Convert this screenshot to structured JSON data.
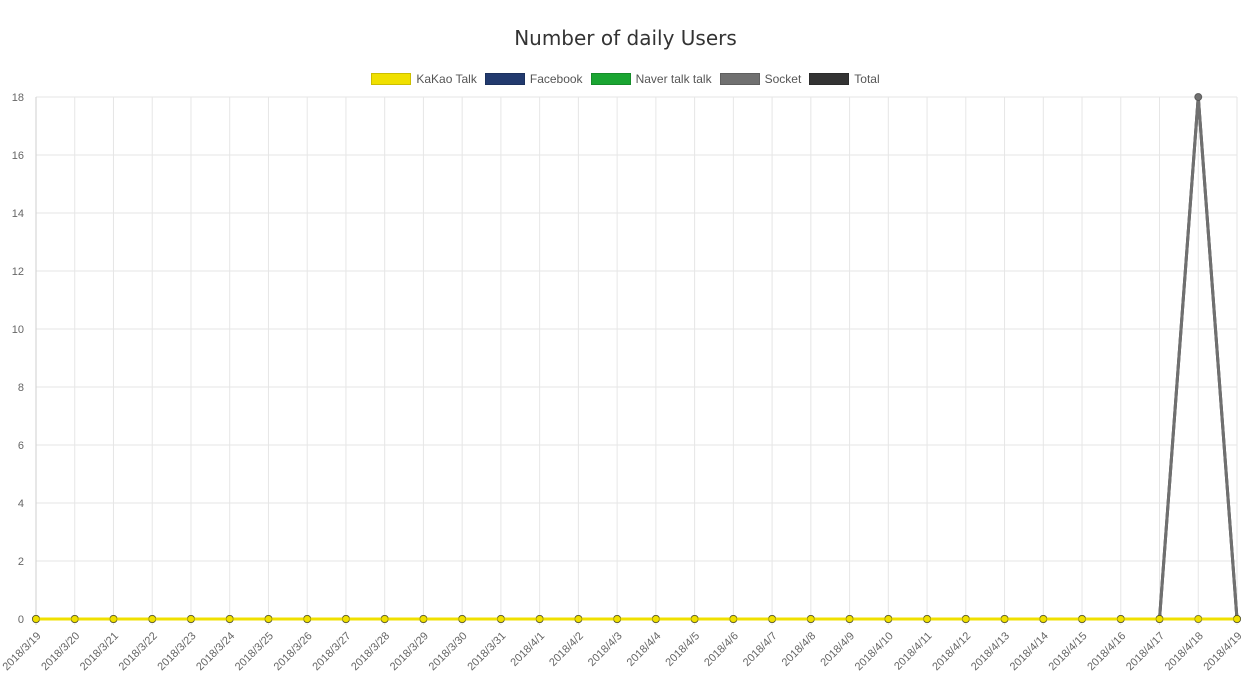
{
  "chart_data": {
    "type": "line",
    "title": "Number of daily Users",
    "xlabel": "",
    "ylabel": "",
    "ylim": [
      0,
      18
    ],
    "y_ticks": [
      0,
      2,
      4,
      6,
      8,
      10,
      12,
      14,
      16,
      18
    ],
    "grid": true,
    "legend_position": "top",
    "categories": [
      "2018/3/19",
      "2018/3/20",
      "2018/3/21",
      "2018/3/22",
      "2018/3/23",
      "2018/3/24",
      "2018/3/25",
      "2018/3/26",
      "2018/3/27",
      "2018/3/28",
      "2018/3/29",
      "2018/3/30",
      "2018/3/31",
      "2018/4/1",
      "2018/4/2",
      "2018/4/3",
      "2018/4/4",
      "2018/4/5",
      "2018/4/6",
      "2018/4/7",
      "2018/4/8",
      "2018/4/9",
      "2018/4/10",
      "2018/4/11",
      "2018/4/12",
      "2018/4/13",
      "2018/4/14",
      "2018/4/15",
      "2018/4/16",
      "2018/4/17",
      "2018/4/18",
      "2018/4/19"
    ],
    "series": [
      {
        "name": "KaKao Talk",
        "color": "#f0e000",
        "values": [
          0,
          0,
          0,
          0,
          0,
          0,
          0,
          0,
          0,
          0,
          0,
          0,
          0,
          0,
          0,
          0,
          0,
          0,
          0,
          0,
          0,
          0,
          0,
          0,
          0,
          0,
          0,
          0,
          0,
          0,
          0,
          0
        ]
      },
      {
        "name": "Facebook",
        "color": "#223a6e",
        "values": [
          0,
          0,
          0,
          0,
          0,
          0,
          0,
          0,
          0,
          0,
          0,
          0,
          0,
          0,
          0,
          0,
          0,
          0,
          0,
          0,
          0,
          0,
          0,
          0,
          0,
          0,
          0,
          0,
          0,
          0,
          0,
          0
        ]
      },
      {
        "name": "Naver talk talk",
        "color": "#1aa532",
        "values": [
          0,
          0,
          0,
          0,
          0,
          0,
          0,
          0,
          0,
          0,
          0,
          0,
          0,
          0,
          0,
          0,
          0,
          0,
          0,
          0,
          0,
          0,
          0,
          0,
          0,
          0,
          0,
          0,
          0,
          0,
          0,
          0
        ]
      },
      {
        "name": "Socket",
        "color": "#707070",
        "values": [
          0,
          0,
          0,
          0,
          0,
          0,
          0,
          0,
          0,
          0,
          0,
          0,
          0,
          0,
          0,
          0,
          0,
          0,
          0,
          0,
          0,
          0,
          0,
          0,
          0,
          0,
          0,
          0,
          0,
          0,
          18,
          0
        ]
      },
      {
        "name": "Total",
        "color": "#333333",
        "values": [
          0,
          0,
          0,
          0,
          0,
          0,
          0,
          0,
          0,
          0,
          0,
          0,
          0,
          0,
          0,
          0,
          0,
          0,
          0,
          0,
          0,
          0,
          0,
          0,
          0,
          0,
          0,
          0,
          0,
          0,
          18,
          0
        ]
      }
    ]
  }
}
